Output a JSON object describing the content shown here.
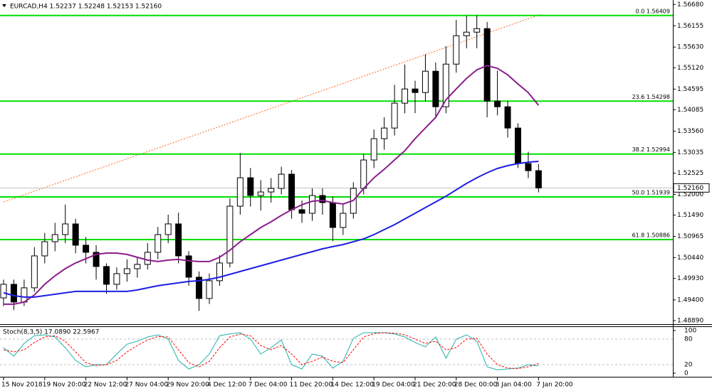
{
  "chart_data": [
    {
      "type": "candlestick",
      "title": "EURCAD,H4  1.52237 1.52248 1.52153 1.52160",
      "categories": [
        "15 Nov 2018",
        null,
        null,
        null,
        "19 Nov 20:00",
        null,
        null,
        null,
        "22 Nov 12:00",
        null,
        null,
        null,
        "27 Nov 04:00",
        null,
        null,
        null,
        "29 Nov 20:00",
        null,
        null,
        null,
        "4 Dec 12:00",
        null,
        null,
        null,
        "7 Dec 04:00",
        null,
        null,
        null,
        "11 Dec 20:00",
        null,
        null,
        null,
        "14 Dec 12:00",
        null,
        null,
        null,
        "19 Dec 04:00",
        null,
        null,
        null,
        "21 Dec 20:00",
        null,
        null,
        null,
        "28 Dec 00:00",
        null,
        null,
        null,
        "3 Jan 04:00",
        null,
        null,
        null,
        "7 Jan 20:00"
      ],
      "open": [
        1.4945,
        1.49785,
        1.49348,
        1.49698,
        1.50485,
        1.50835,
        1.5101,
        1.51273,
        1.50748,
        1.50573,
        1.50223,
        1.49785,
        1.50048,
        1.5017,
        1.50275,
        1.50573,
        1.5101,
        1.51273,
        1.50485,
        1.4996,
        1.49435,
        1.49873,
        1.5031,
        1.5171,
        1.5241,
        1.51973,
        1.5206,
        1.52148,
        1.52498,
        1.51623,
        1.51535,
        1.51973,
        1.51798,
        1.51185,
        1.51535,
        1.52148,
        1.52848,
        1.53373,
        1.53635,
        1.54248,
        1.54598,
        1.5451,
        1.55035,
        1.5416,
        1.5521,
        1.5591,
        1.55998,
        1.56085,
        1.543,
        1.5416,
        1.53635,
        1.5276,
        1.52585
      ],
      "high": [
        1.499,
        1.499,
        1.499,
        1.507,
        1.5105,
        1.513,
        1.5175,
        1.514,
        1.5095,
        1.5075,
        1.503,
        1.502,
        1.504,
        1.5045,
        1.508,
        1.512,
        1.515,
        1.5155,
        1.506,
        1.501,
        1.5005,
        1.505,
        1.519,
        1.5302,
        1.5265,
        1.5235,
        1.524,
        1.5268,
        1.526,
        1.5185,
        1.5215,
        1.5215,
        1.5195,
        1.5175,
        1.523,
        1.53,
        1.536,
        1.539,
        1.547,
        1.552,
        1.548,
        1.5545,
        1.5525,
        1.5565,
        1.563,
        1.564,
        1.56409,
        1.5625,
        1.5505,
        1.543,
        1.5375,
        1.5305,
        1.5275
      ],
      "low": [
        1.4925,
        1.4915,
        1.4925,
        1.496,
        1.503,
        1.506,
        1.508,
        1.5055,
        1.503,
        1.499,
        1.4955,
        1.4965,
        1.4985,
        1.4995,
        1.5015,
        1.504,
        1.508,
        1.503,
        1.4975,
        1.4913,
        1.493,
        1.4975,
        1.502,
        1.515,
        1.517,
        1.516,
        1.518,
        1.52,
        1.514,
        1.513,
        1.5135,
        1.515,
        1.5085,
        1.51,
        1.514,
        1.52,
        1.5265,
        1.531,
        1.5345,
        1.54,
        1.54,
        1.543,
        1.539,
        1.54,
        1.55,
        1.556,
        1.556,
        1.539,
        1.5395,
        1.534,
        1.5265,
        1.524,
        1.5205
      ],
      "close": [
        1.49785,
        1.49348,
        1.49698,
        1.50485,
        1.50835,
        1.5101,
        1.51273,
        1.50748,
        1.50573,
        1.50223,
        1.49785,
        1.50048,
        1.5017,
        1.50275,
        1.50573,
        1.5101,
        1.51273,
        1.50485,
        1.4996,
        1.49435,
        1.49873,
        1.5031,
        1.5171,
        1.5241,
        1.51973,
        1.5206,
        1.52148,
        1.52498,
        1.51623,
        1.51535,
        1.51973,
        1.51798,
        1.51185,
        1.51535,
        1.52148,
        1.52848,
        1.53373,
        1.53635,
        1.54248,
        1.54598,
        1.5451,
        1.55035,
        1.5416,
        1.5521,
        1.5591,
        1.55998,
        1.56085,
        1.543,
        1.5416,
        1.53635,
        1.5276,
        1.52585,
        1.5216
      ],
      "series": [
        {
          "color": "#8b1e8b",
          "values": [
            1.49295,
            1.49295,
            1.49348,
            1.49523,
            1.49785,
            1.49995,
            1.5017,
            1.5031,
            1.50415,
            1.5052,
            1.50555,
            1.50555,
            1.5052,
            1.5045,
            1.5038,
            1.50345,
            1.5038,
            1.50398,
            1.50363,
            1.50345,
            1.50345,
            1.5045,
            1.50625,
            1.50835,
            1.5101,
            1.51185,
            1.51325,
            1.51483,
            1.51623,
            1.51745,
            1.51833,
            1.5185,
            1.51798,
            1.51763,
            1.5185,
            1.52148,
            1.5241,
            1.5262,
            1.52848,
            1.53075,
            1.53373,
            1.53635,
            1.53898,
            1.54335,
            1.54598,
            1.5486,
            1.5507,
            1.55175,
            1.55105,
            1.54948,
            1.5472,
            1.5451,
            1.54195
          ]
        },
        {
          "color": "#1e1ee6",
          "values": [
            1.49575,
            1.49505,
            1.4947,
            1.4947,
            1.49505,
            1.4954,
            1.49575,
            1.4961,
            1.4961,
            1.4961,
            1.4961,
            1.4961,
            1.4961,
            1.49645,
            1.49698,
            1.4975,
            1.49785,
            1.4982,
            1.49855,
            1.49873,
            1.49908,
            1.4996,
            1.5003,
            1.501,
            1.5017,
            1.5024,
            1.5031,
            1.5038,
            1.5045,
            1.5052,
            1.5059,
            1.5066,
            1.50713,
            1.50765,
            1.50835,
            1.50905,
            1.5101,
            1.51133,
            1.51255,
            1.51395,
            1.51535,
            1.51675,
            1.51815,
            1.51955,
            1.52113,
            1.5227,
            1.5241,
            1.52533,
            1.52638,
            1.52708,
            1.5276,
            1.52795,
            1.52813
          ]
        }
      ],
      "levels": [
        {
          "label": "0.0 1.56409",
          "value": 1.56409
        },
        {
          "label": "23.6 1.54298",
          "value": 1.54298
        },
        {
          "label": "38.2 1.52994",
          "value": 1.52994
        },
        {
          "label": "50.0 1.51939",
          "value": 1.51939
        },
        {
          "label": "61.8 1.50886",
          "value": 1.50886
        }
      ],
      "level_color": "#00e000",
      "last_price": {
        "value": 1.5216,
        "label": "1.52160"
      },
      "ylim": [
        1.4882,
        1.5679
      ],
      "yticks": [
        {
          "value": 1.5668,
          "label": "1.56680"
        },
        1.56155,
        {
          "value": 1.5563,
          "label": "1.55630"
        },
        {
          "value": 1.5512,
          "label": "1.55120"
        },
        1.54595,
        1.54085,
        {
          "value": 1.5356,
          "label": "1.53560"
        },
        1.53035,
        1.52525,
        {
          "value": 1.52,
          "label": "1.52000"
        },
        {
          "value": 1.5149,
          "label": "1.51490"
        },
        1.50965,
        {
          "value": 1.5044,
          "label": "1.50440"
        },
        {
          "value": 1.4993,
          "label": "1.49930"
        },
        {
          "value": 1.494,
          "label": "1.49400"
        },
        {
          "value": 1.4889,
          "label": "1.48890"
        }
      ]
    },
    {
      "type": "line",
      "title": "Stoch(8,3,5) 17.0890 22.5967",
      "series": [
        {
          "color": "#20b2aa",
          "dashed": false,
          "values": [
            60,
            40,
            70,
            88,
            90,
            85,
            60,
            30,
            15,
            20,
            20,
            45,
            68,
            75,
            85,
            90,
            80,
            30,
            10,
            20,
            45,
            88,
            92,
            95,
            80,
            45,
            60,
            78,
            20,
            10,
            45,
            40,
            12,
            28,
            82,
            95,
            95,
            95,
            92,
            85,
            72,
            62,
            85,
            35,
            80,
            90,
            75,
            15,
            8,
            10,
            12,
            20,
            17.089
          ]
        },
        {
          "color": "#ff0000",
          "dashed": true,
          "values": [
            55,
            50,
            55,
            72,
            85,
            88,
            75,
            50,
            25,
            18,
            20,
            30,
            50,
            65,
            78,
            86,
            85,
            55,
            25,
            15,
            28,
            60,
            85,
            92,
            88,
            65,
            55,
            65,
            45,
            20,
            28,
            38,
            28,
            25,
            55,
            85,
            93,
            95,
            94,
            90,
            80,
            70,
            75,
            55,
            60,
            80,
            82,
            45,
            20,
            12,
            11,
            15,
            22.5967
          ]
        }
      ],
      "ylim": [
        0,
        100
      ],
      "yticks": [
        0,
        20,
        80,
        100
      ]
    }
  ]
}
